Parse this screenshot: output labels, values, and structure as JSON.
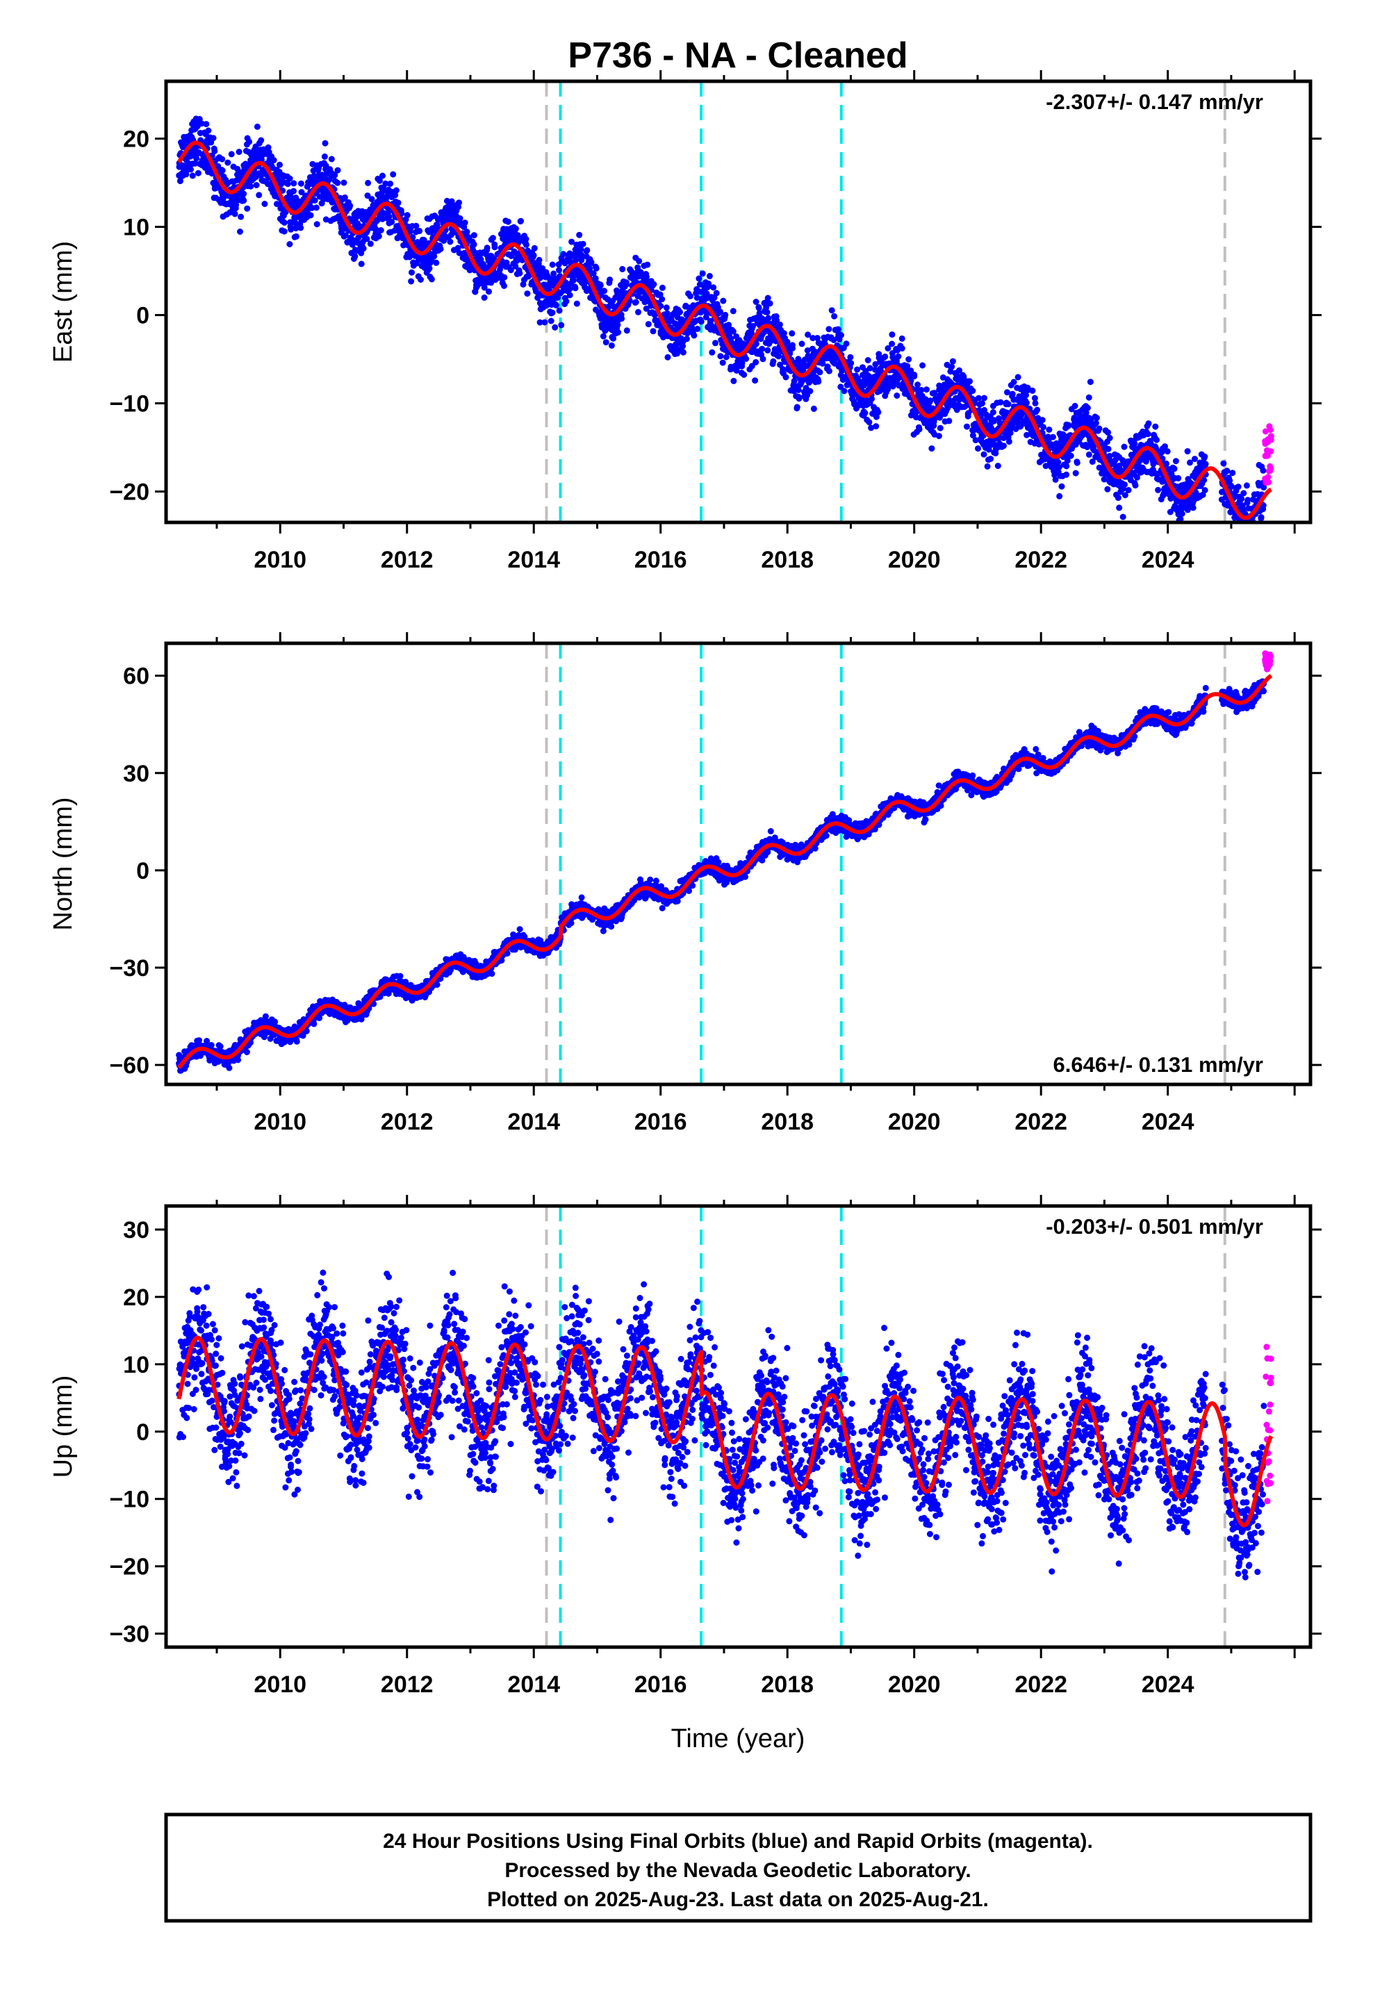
{
  "title": "P736  - NA - Cleaned",
  "xlabel": "Time (year)",
  "x_ticks": [
    "2010",
    "2012",
    "2014",
    "2016",
    "2018",
    "2020",
    "2022",
    "2024"
  ],
  "colors": {
    "final": "#0000ff",
    "rapid": "#ff00ff",
    "model": "#ff0000",
    "gray_line": "#c0c0c0",
    "cyan_line": "#00e5e5"
  },
  "vertical_lines": {
    "gray": [
      2014.2,
      2024.9
    ],
    "cyan": [
      2014.42,
      2016.64,
      2018.85
    ]
  },
  "footer": {
    "line1": "24 Hour Positions Using Final Orbits (blue) and Rapid Orbits (magenta).",
    "line2": "Processed by the Nevada Geodetic Laboratory.",
    "line3": "Plotted on 2025-Aug-23. Last data on 2025-Aug-21."
  },
  "chart_data": [
    {
      "type": "scatter",
      "ylabel": "East (mm)",
      "rate": "-2.307+/- 0.147 mm/yr",
      "xlim": [
        2008.2,
        2026.25
      ],
      "ylim": [
        -23.5,
        26.5
      ],
      "y_ticks": [
        "20",
        "10",
        "0",
        "−10",
        "−20"
      ],
      "y_tick_values": [
        20,
        10,
        0,
        -10,
        -20
      ],
      "data_span": [
        2008.4,
        2025.63
      ],
      "trend": {
        "start": 18.0,
        "rate_per_year": -2.307
      },
      "seasonal_amplitude": 2.2,
      "noise": 1.5,
      "offsets": [],
      "rapid_y_range": [
        -19,
        -12.5
      ]
    },
    {
      "type": "scatter",
      "ylabel": "North (mm)",
      "rate": "6.646+/- 0.131 mm/yr",
      "xlim": [
        2008.2,
        2026.25
      ],
      "ylim": [
        -66,
        70
      ],
      "y_ticks": [
        "60",
        "30",
        "0",
        "−30",
        "−60"
      ],
      "y_tick_values": [
        60,
        30,
        0,
        -30,
        -60
      ],
      "data_span": [
        2008.4,
        2025.63
      ],
      "trend": {
        "start": -60.0,
        "rate_per_year": 6.646
      },
      "seasonal_amplitude": 2.8,
      "noise": 1.2,
      "offsets": [
        {
          "t": 2014.42,
          "dy": 3.0
        }
      ],
      "rapid_y_range": [
        62,
        67
      ]
    },
    {
      "type": "scatter",
      "ylabel": "Up (mm)",
      "rate": "-0.203+/- 0.501 mm/yr",
      "xlim": [
        2008.2,
        2026.25
      ],
      "ylim": [
        -32,
        33.5
      ],
      "y_ticks": [
        "30",
        "20",
        "10",
        "0",
        "−10",
        "−20",
        "−30"
      ],
      "y_tick_values": [
        30,
        20,
        10,
        0,
        -10,
        -20,
        -30
      ],
      "data_span": [
        2008.4,
        2025.63
      ],
      "trend": {
        "start": 7.0,
        "rate_per_year": -0.203
      },
      "seasonal_amplitude": 7.0,
      "noise": 4.2,
      "offsets": [
        {
          "t": 2016.64,
          "dy": -6.5
        },
        {
          "t": 2024.9,
          "dy": -4.0
        }
      ],
      "rapid_y_range": [
        -11,
        13
      ]
    }
  ]
}
